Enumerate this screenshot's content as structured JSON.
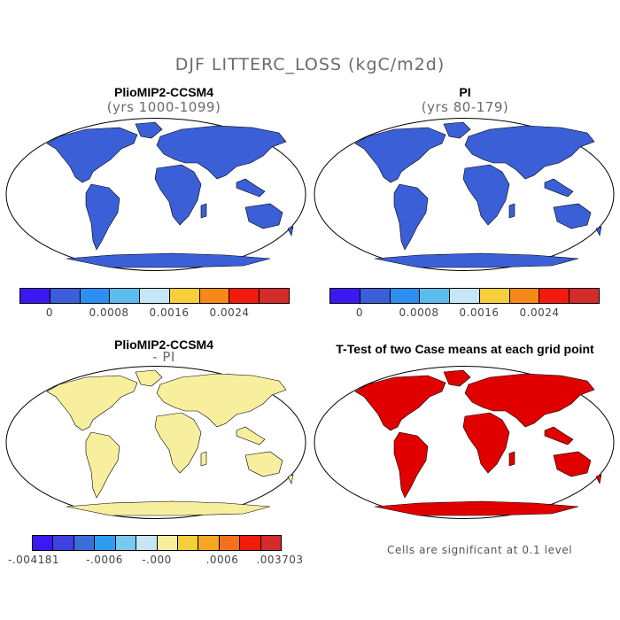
{
  "figure_title": "DJF LITTERC_LOSS (kgC/m2d)",
  "panels": {
    "top_left": {
      "title": "PlioMIP2-CCSM4",
      "subtitle": "(yrs 1000-1099)",
      "ocean_fill": "#ffffff",
      "land_fill": "#3b5fd6"
    },
    "top_right": {
      "title": "PI",
      "subtitle": "(yrs 80-179)",
      "ocean_fill": "#ffffff",
      "land_fill": "#3b5fd6"
    },
    "bottom_left": {
      "title": "PlioMIP2-CCSM4",
      "subtitle": "- PI",
      "ocean_fill": "#ffffff",
      "land_fill": "#f7ef9e"
    },
    "bottom_right": {
      "title": "T-Test of two Case means at each grid point",
      "ocean_fill": "#ffffff",
      "land_fill": "#e00000"
    }
  },
  "colorbar_top": {
    "colors": [
      "#3d17f2",
      "#3a5fd8",
      "#2d8ff0",
      "#5bbdee",
      "#c4e6f5",
      "#f6cf3b",
      "#f58a1b",
      "#f21b0b",
      "#d42b2b"
    ],
    "labels": [
      "0",
      "0.0008",
      "0.0016",
      "0.0024"
    ]
  },
  "colorbar_bottom": {
    "colors": [
      "#3d17f2",
      "#3d41e0",
      "#3a6fd8",
      "#2d9cf0",
      "#78c9f0",
      "#c4e6f5",
      "#f7ef9e",
      "#f6cf3b",
      "#f5a623",
      "#f5701b",
      "#f21b0b",
      "#d42b2b"
    ],
    "labels": [
      "-.004181",
      "-.0006",
      "-.000",
      ".0006",
      ".003703"
    ]
  },
  "footnote": "Cells are significant at 0.1 level"
}
